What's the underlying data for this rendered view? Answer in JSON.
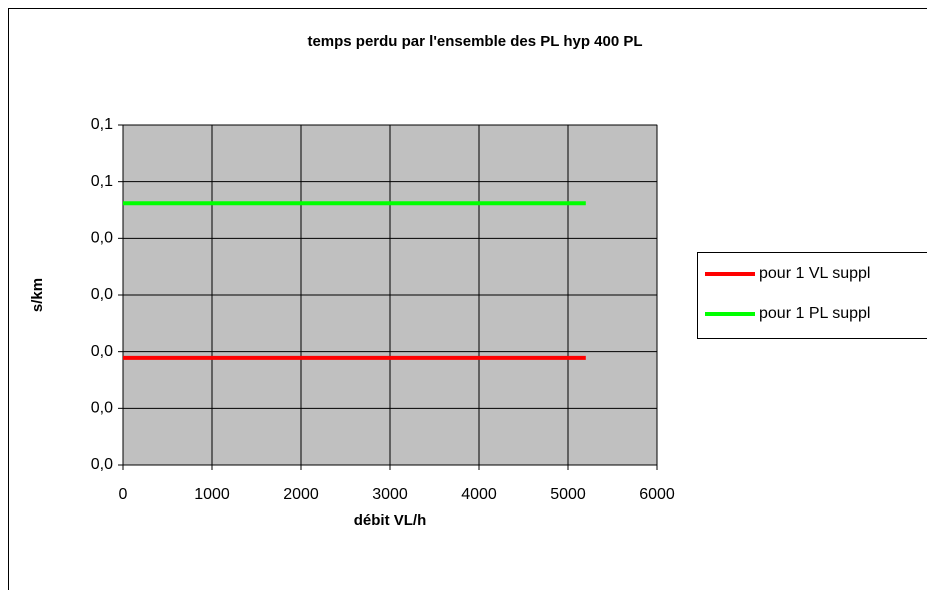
{
  "chart_data": {
    "type": "line",
    "title": "temps perdu par l'ensemble des PL hyp 400 PL",
    "x_label": "débit VL/h",
    "y_label": "s/km",
    "x": [
      0,
      5200
    ],
    "series": [
      {
        "name": "pour 1 VL suppl",
        "color": "#ff0000",
        "values": [
          0.0189,
          0.0189
        ]
      },
      {
        "name": "pour 1 PL suppl",
        "color": "#00ff00",
        "values": [
          0.0462,
          0.0462
        ]
      }
    ],
    "xlim": [
      0,
      6000
    ],
    "xticks": [
      0,
      1000,
      2000,
      3000,
      4000,
      5000,
      6000
    ],
    "ylim": [
      0,
      0.06
    ],
    "yticks": [
      {
        "value": 0,
        "label": "0,0"
      },
      {
        "value": 0.01,
        "label": "0,0"
      },
      {
        "value": 0.02,
        "label": "0,0"
      },
      {
        "value": 0.03,
        "label": "0,0"
      },
      {
        "value": 0.04,
        "label": "0,0"
      },
      {
        "value": 0.05,
        "label": "0,1"
      },
      {
        "value": 0.06,
        "label": "0,1"
      }
    ],
    "grid": true,
    "legend": "right"
  }
}
